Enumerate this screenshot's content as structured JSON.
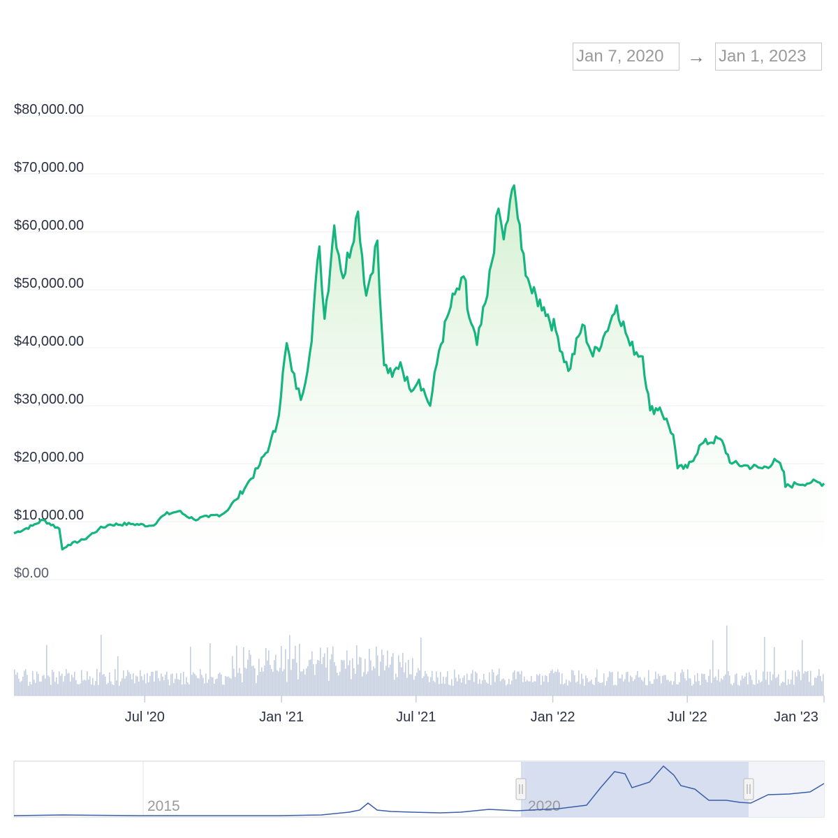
{
  "range_selector": {
    "from": "Jan 7, 2020",
    "arrow": "→",
    "to": "Jan 1, 2023"
  },
  "colors": {
    "price_line": "#16b57f",
    "area_fill_top": "#cfeecb",
    "area_fill_bottom": "#ffffff",
    "grid": "#ececec",
    "volume": "#c5cedf",
    "navigator_line": "#3a5ea8",
    "navigator_mask": "#cfd8ec"
  },
  "chart_data": [
    {
      "type": "line",
      "title": "",
      "xlabel": "",
      "ylabel": "",
      "y_axis_labels": [
        "$0.00",
        "$10,000.00",
        "$20,000.00",
        "$30,000.00",
        "$40,000.00",
        "$50,000.00",
        "$60,000.00",
        "$70,000.00",
        "$80,000.00"
      ],
      "x_axis_labels": [
        "Jul '20",
        "Jan '21",
        "Jul '21",
        "Jan '22",
        "Jul '22",
        "Jan '23"
      ],
      "ylim": [
        0,
        80000
      ],
      "xlim": [
        "2020-01-07",
        "2023-01-01"
      ],
      "grid": true,
      "series": [
        {
          "x": [
            "2020-01-07",
            "2020-02-01",
            "2020-02-15",
            "2020-03-08",
            "2020-03-12",
            "2020-03-20",
            "2020-04-10",
            "2020-04-30",
            "2020-05-15",
            "2020-06-15",
            "2020-07-10",
            "2020-07-28",
            "2020-08-15",
            "2020-09-05",
            "2020-09-25",
            "2020-10-15",
            "2020-11-01",
            "2020-11-15",
            "2020-11-30",
            "2020-12-16",
            "2020-12-26",
            "2021-01-08",
            "2021-01-15",
            "2021-01-27",
            "2021-02-08",
            "2021-02-21",
            "2021-02-28",
            "2021-03-13",
            "2021-03-25",
            "2021-04-14",
            "2021-04-25",
            "2021-05-10",
            "2021-05-13",
            "2021-05-19",
            "2021-05-30",
            "2021-06-10",
            "2021-06-22",
            "2021-07-05",
            "2021-07-20",
            "2021-08-01",
            "2021-08-14",
            "2021-08-22",
            "2021-09-06",
            "2021-09-08",
            "2021-09-21",
            "2021-10-05",
            "2021-10-20",
            "2021-10-27",
            "2021-11-10",
            "2021-11-20",
            "2021-12-04",
            "2021-12-20",
            "2022-01-05",
            "2022-01-22",
            "2022-02-10",
            "2022-02-24",
            "2022-03-10",
            "2022-03-28",
            "2022-04-15",
            "2022-05-02",
            "2022-05-12",
            "2022-05-25",
            "2022-06-12",
            "2022-06-18",
            "2022-07-01",
            "2022-07-20",
            "2022-08-14",
            "2022-08-30",
            "2022-09-15",
            "2022-10-10",
            "2022-10-29",
            "2022-11-08",
            "2022-11-10",
            "2022-11-25",
            "2022-12-15",
            "2023-01-01"
          ],
          "values": [
            8000,
            9300,
            10300,
            8800,
            5200,
            6000,
            6900,
            8700,
            9500,
            9600,
            9300,
            11200,
            11800,
            10400,
            10800,
            11400,
            13800,
            16300,
            19200,
            23200,
            26800,
            40800,
            36000,
            31000,
            39000,
            57500,
            45000,
            61100,
            52000,
            63500,
            49000,
            58500,
            49500,
            37000,
            35000,
            37500,
            33000,
            34500,
            30000,
            39500,
            46000,
            49200,
            51600,
            46700,
            40500,
            49000,
            64000,
            58700,
            68000,
            57000,
            49400,
            47000,
            43000,
            36000,
            44000,
            38500,
            41800,
            47300,
            40400,
            38500,
            29200,
            29700,
            25000,
            19200,
            19300,
            23400,
            24300,
            20000,
            19700,
            19200,
            20500,
            18600,
            16000,
            16500,
            16800,
            16600
          ]
        }
      ]
    },
    {
      "type": "bar",
      "title": "",
      "description_level": "trading volume (no axis labels printed)",
      "x_axis_labels": [
        "Jul '20",
        "Jan '21",
        "Jul '21",
        "Jan '22",
        "Jul '22",
        "Jan '23"
      ]
    },
    {
      "type": "line",
      "title": "",
      "x_axis_labels": [
        "2015",
        "2020"
      ],
      "selected_range": [
        "2020-01-07",
        "2023-01-01"
      ]
    }
  ]
}
